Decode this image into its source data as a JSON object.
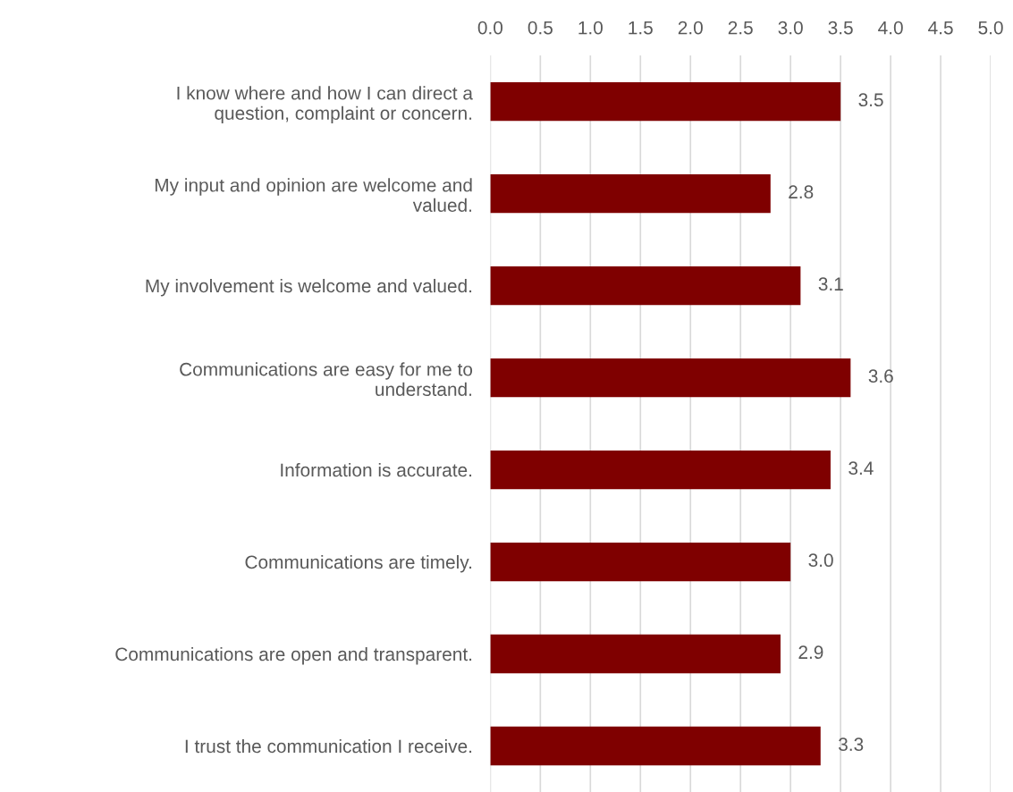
{
  "chart_data": {
    "type": "bar",
    "orientation": "horizontal",
    "categories": [
      "I know where and how I can direct a\nquestion, complaint or concern.",
      "My input and opinion are welcome and\nvalued.",
      "My involvement is welcome and valued.",
      "Communications are easy for me to\nunderstand.",
      "Information is accurate.",
      "Communications are timely.",
      "Communications are open and transparent.",
      "I trust the communication I receive."
    ],
    "values": [
      3.5,
      2.8,
      3.1,
      3.6,
      3.4,
      3.0,
      2.9,
      3.3
    ],
    "color": "#7f0000",
    "xlim": [
      0,
      5
    ],
    "xticks": [
      {
        "value": 0,
        "label": "0.0"
      },
      {
        "value": 0.5,
        "label": "0.5"
      },
      {
        "value": 1,
        "label": "1.0"
      },
      {
        "value": 1.5,
        "label": "1.5"
      },
      {
        "value": 2,
        "label": "2.0"
      },
      {
        "value": 2.5,
        "label": "2.5"
      },
      {
        "value": 3,
        "label": "3.0"
      },
      {
        "value": 3.5,
        "label": "3.5"
      },
      {
        "value": 4,
        "label": "4.0"
      },
      {
        "value": 4.5,
        "label": "4.5"
      },
      {
        "value": 5,
        "label": "5.0"
      }
    ],
    "value_labels": [
      "3.5",
      "2.8",
      "3.1",
      "3.6",
      "3.4",
      "3.0",
      "2.9",
      "3.3"
    ],
    "grid": "x"
  }
}
